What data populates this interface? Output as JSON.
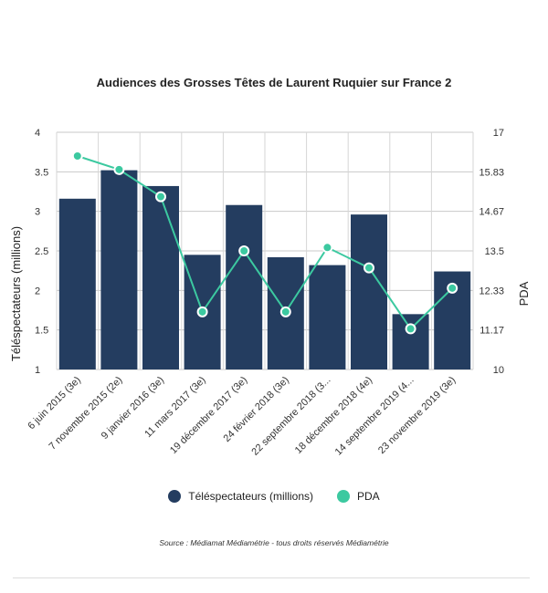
{
  "chart_data": {
    "type": "bar",
    "title": "Audiences des Grosses Têtes de Laurent Ruquier sur France 2",
    "categories": [
      "6 juin 2015 (3e)",
      "7 novembre 2015 (2e)",
      "9 janvier 2016 (3e)",
      "11 mars 2017 (3e)",
      "19 décembre 2017 (3e)",
      "24 février 2018 (3e)",
      "22 septembre 2018 (3...",
      "18 décembre 2018 (4e)",
      "14 septembre 2019 (4...",
      "23 novembre 2019 (3e)"
    ],
    "series": [
      {
        "name": "Téléspectateurs (millions)",
        "kind": "bar",
        "axis": "left",
        "color": "#243d60",
        "values": [
          3.16,
          3.52,
          3.32,
          2.45,
          3.08,
          2.42,
          2.32,
          2.96,
          1.7,
          2.24
        ]
      },
      {
        "name": "PDA",
        "kind": "line",
        "axis": "right",
        "color": "#3cc9a0",
        "values": [
          16.3,
          15.9,
          15.1,
          11.7,
          13.5,
          11.7,
          13.6,
          13.0,
          11.2,
          12.4
        ]
      }
    ],
    "ylabel": "Téléspectateurs (millions)",
    "ylabel_right": "PDA",
    "ylim": [
      1,
      4
    ],
    "ylim_right": [
      10,
      17
    ],
    "yticks": [
      "1",
      "1.5",
      "2",
      "2.5",
      "3",
      "3.5",
      "4"
    ],
    "yticks_right": [
      "10",
      "11.17",
      "12.33",
      "13.5",
      "14.67",
      "15.83",
      "17"
    ],
    "grid": true,
    "legend": "bottom"
  },
  "source": "Source : Médiamat Médiamétrie - tous droits réservés Médiamétrie"
}
